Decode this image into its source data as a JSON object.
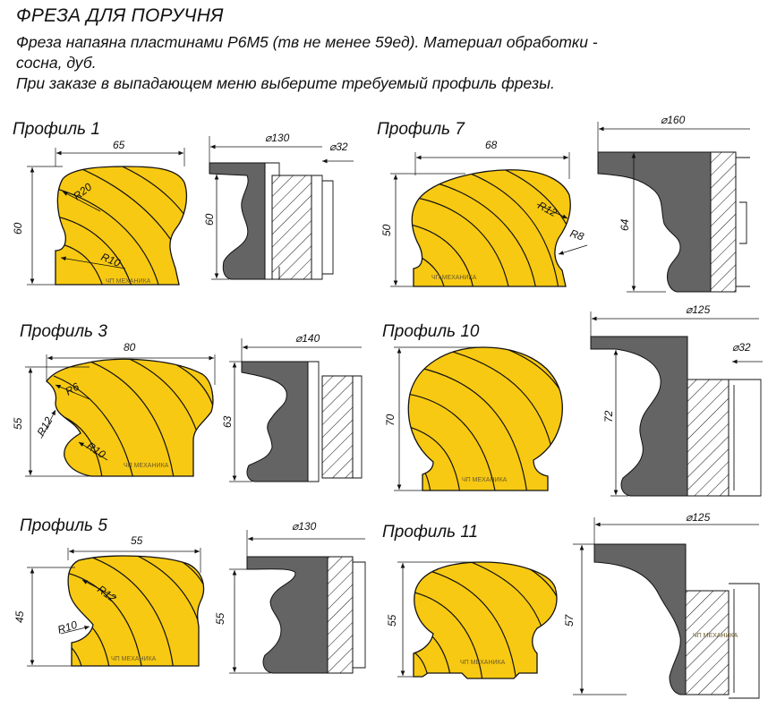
{
  "header": {
    "title": "ФРЕЗА ДЛЯ ПОРУЧНЯ",
    "desc_line1": "Фреза напаяна пластинами Р6М5 (тв не менее 59ед). Материал обработки -",
    "desc_line2": "сосна, дуб.",
    "desc_line3": "При заказе в выпадающем меню выберите требуемый профиль фрезы."
  },
  "watermark": "ЧП МЕХАНИКА",
  "colors": {
    "wood": "#f7c912",
    "steel": "#646464",
    "line": "#111111",
    "background": "#ffffff"
  },
  "profiles": [
    {
      "label": "Профиль 1",
      "width": "65",
      "height": "60",
      "radius_a": "R20",
      "radius_b": "R10",
      "cutter_dia": "⌀130",
      "bore_dia": "⌀32",
      "cutter_height": "60"
    },
    {
      "label": "Профиль 7",
      "width": "68",
      "height": "50",
      "radius_a": "R12",
      "radius_b": "R8",
      "cutter_dia": "⌀160",
      "cutter_height": "64"
    },
    {
      "label": "Профиль 3",
      "width": "80",
      "height": "55",
      "radius_a": "R6",
      "radius_b": "R12",
      "radius_c": "R10",
      "cutter_dia": "⌀140",
      "cutter_height": "63"
    },
    {
      "label": "Профиль 10",
      "height": "70",
      "cutter_dia": "⌀125",
      "bore_dia": "⌀32",
      "cutter_height": "72"
    },
    {
      "label": "Профиль 5",
      "width": "55",
      "height": "45",
      "radius_a": "R12",
      "radius_b": "R10",
      "cutter_dia": "⌀130",
      "cutter_height": "55"
    },
    {
      "label": "Профиль 11",
      "height": "55",
      "cutter_dia": "⌀125",
      "cutter_height": "57"
    }
  ]
}
